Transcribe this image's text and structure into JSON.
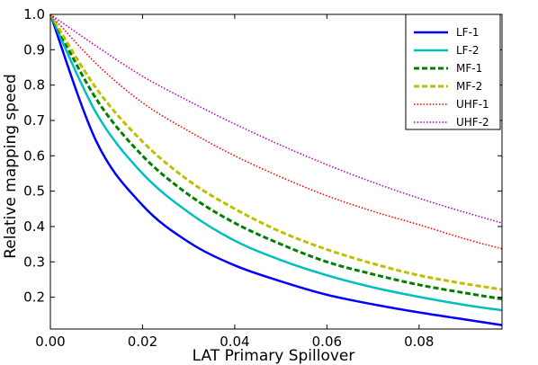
{
  "chart_data": {
    "type": "line",
    "xlabel": "LAT Primary Spillover",
    "ylabel": "Relative mapping speed",
    "xlim": [
      0,
      0.098
    ],
    "ylim": [
      0.11,
      1.0
    ],
    "xticks": [
      0.0,
      0.02,
      0.04,
      0.06,
      0.08
    ],
    "xtick_labels": [
      "0.00",
      "0.02",
      "0.04",
      "0.06",
      "0.08"
    ],
    "yticks": [
      0.2,
      0.3,
      0.4,
      0.5,
      0.6,
      0.7,
      0.8,
      0.9,
      1.0
    ],
    "ytick_labels": [
      "0.2",
      "0.3",
      "0.4",
      "0.5",
      "0.6",
      "0.7",
      "0.8",
      "0.9",
      "1.0"
    ],
    "grid": false,
    "legend_position": "top-right",
    "x": [
      0.0,
      0.01,
      0.02,
      0.03,
      0.04,
      0.05,
      0.06,
      0.07,
      0.08,
      0.09,
      0.098
    ],
    "series": [
      {
        "name": "LF-1",
        "color": "#0000ff",
        "dash": "solid",
        "values": [
          1.0,
          0.64,
          0.46,
          0.356,
          0.29,
          0.245,
          0.207,
          0.18,
          0.157,
          0.137,
          0.121
        ]
      },
      {
        "name": "LF-2",
        "color": "#00bfbf",
        "dash": "solid",
        "values": [
          1.0,
          0.72,
          0.55,
          0.44,
          0.36,
          0.305,
          0.262,
          0.228,
          0.201,
          0.178,
          0.163
        ]
      },
      {
        "name": "MF-1",
        "color": "#007f00",
        "dash": "dashed",
        "values": [
          1.0,
          0.76,
          0.6,
          0.49,
          0.41,
          0.35,
          0.3,
          0.265,
          0.235,
          0.212,
          0.195
        ]
      },
      {
        "name": "MF-2",
        "color": "#bfbf00",
        "dash": "dashed",
        "values": [
          1.0,
          0.79,
          0.64,
          0.53,
          0.45,
          0.385,
          0.335,
          0.295,
          0.262,
          0.238,
          0.222
        ]
      },
      {
        "name": "UHF-1",
        "color": "#ff0000",
        "dash": "dotted",
        "values": [
          1.0,
          0.86,
          0.75,
          0.67,
          0.6,
          0.54,
          0.487,
          0.443,
          0.405,
          0.365,
          0.337
        ]
      },
      {
        "name": "UHF-2",
        "color": "#bf00bf",
        "dash": "dotted",
        "values": [
          1.0,
          0.91,
          0.825,
          0.755,
          0.69,
          0.63,
          0.575,
          0.525,
          0.48,
          0.44,
          0.41
        ]
      }
    ]
  }
}
